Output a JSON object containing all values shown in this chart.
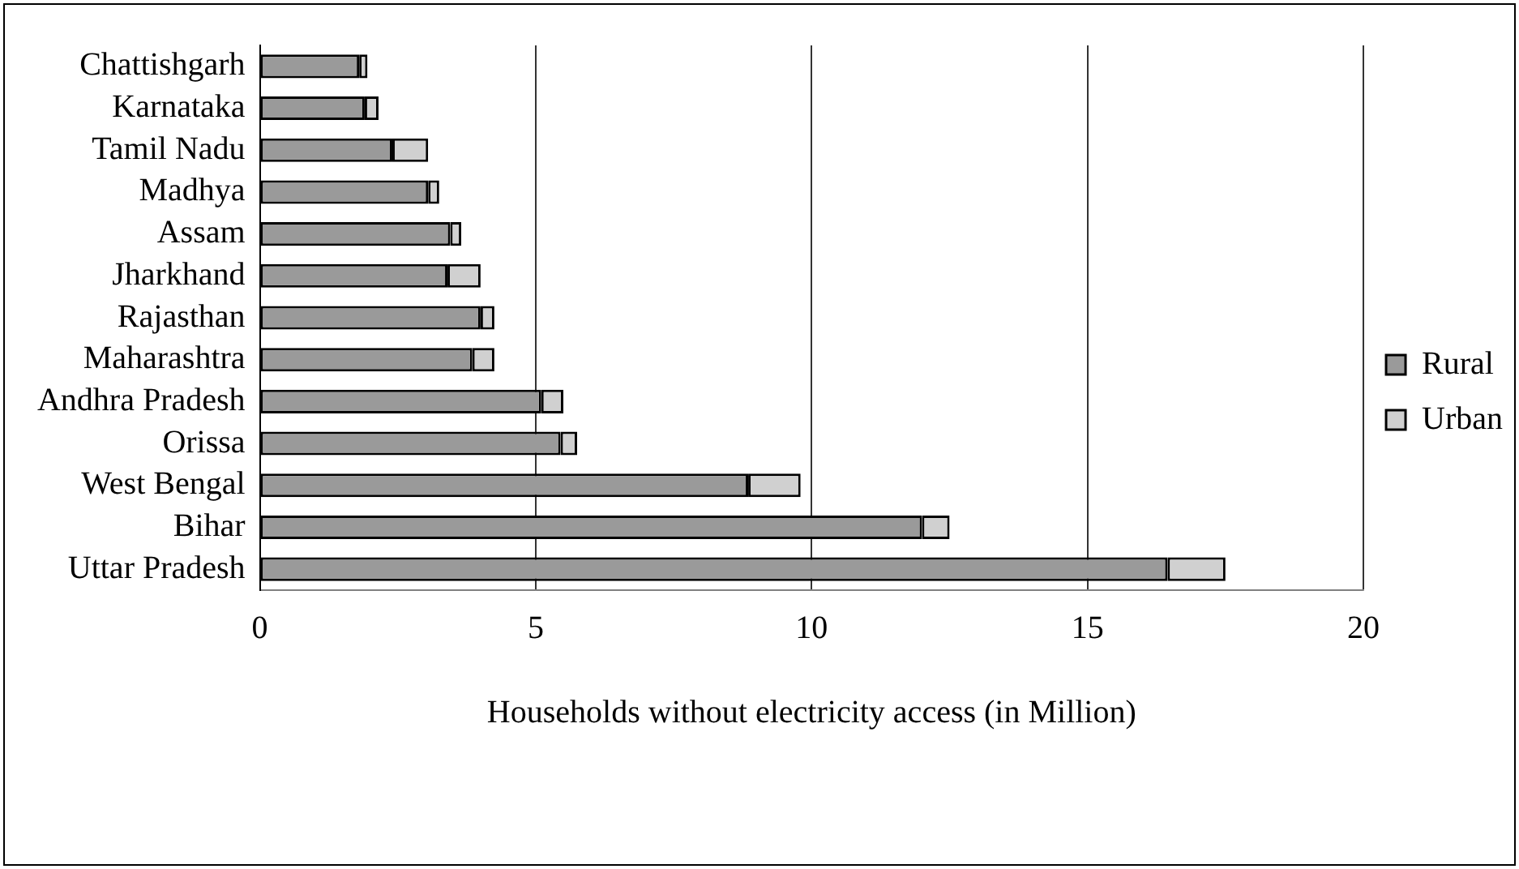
{
  "chart_data": {
    "type": "bar",
    "orientation": "horizontal",
    "stacked": true,
    "xlabel": "Households without electricity access (in Million)",
    "categories": [
      "Chattishgarh",
      "Karnataka",
      "Tamil Nadu",
      "Madhya",
      "Assam",
      "Jharkhand",
      "Rajasthan",
      "Maharashtra",
      "Andhra Pradesh",
      "Orissa",
      "West Bengal",
      "Bihar",
      "Uttar Pradesh"
    ],
    "series": [
      {
        "name": "Rural",
        "color": "#9a9a9a",
        "values": [
          1.8,
          1.9,
          2.4,
          3.05,
          3.45,
          3.4,
          4.0,
          3.85,
          5.1,
          5.45,
          8.85,
          12.0,
          16.45
        ]
      },
      {
        "name": "Urban",
        "color": "#d0d0d0",
        "values": [
          0.15,
          0.25,
          0.65,
          0.2,
          0.2,
          0.6,
          0.25,
          0.4,
          0.4,
          0.3,
          0.95,
          0.5,
          1.05
        ]
      }
    ],
    "xlim": [
      0,
      20
    ],
    "xticks": [
      0,
      5,
      10,
      15,
      20
    ],
    "grid": "x",
    "legend": "right"
  }
}
